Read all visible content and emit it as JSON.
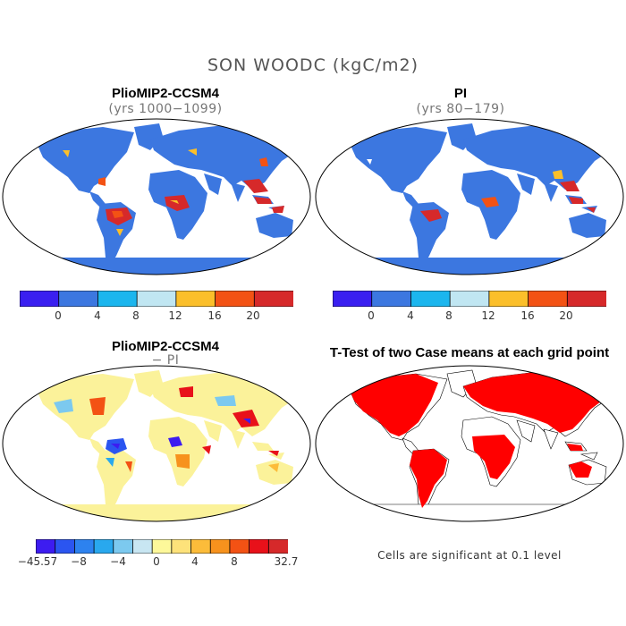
{
  "figure": {
    "title": "SON WOODC (kgC/m2)",
    "panels": [
      {
        "title": "PlioMIP2-CCSM4",
        "subtitle": "(yrs 1000−1099)"
      },
      {
        "title": "PI",
        "subtitle": "(yrs 80−179)"
      },
      {
        "title": "PlioMIP2-CCSM4",
        "subtitle": "− PI"
      },
      {
        "title": "T-Test of two Case means at each grid point",
        "subtitle": ""
      }
    ],
    "note": "Cells are significant at 0.1 level"
  },
  "colorbars": {
    "absolute": {
      "colors": [
        "#3a1ff0",
        "#3c77e0",
        "#1cb6ee",
        "#c0e6f2",
        "#fbbf2a",
        "#f35214",
        "#d6292a"
      ],
      "labels": [
        "0",
        "4",
        "8",
        "12",
        "16",
        "20"
      ]
    },
    "difference": {
      "colors": [
        "#3d1cf0",
        "#2b55f0",
        "#2d82ef",
        "#29a8ee",
        "#7cc9ef",
        "#c8e6f2",
        "#fdf89a",
        "#fde27a",
        "#fcbc3a",
        "#f7921d",
        "#f35214",
        "#e8111a",
        "#d6292a"
      ],
      "labels": [
        "−45.57",
        "−8",
        "−4",
        "0",
        "4",
        "8",
        "32.7"
      ]
    }
  },
  "colors": {
    "land_absolute": "#3c77e0",
    "land_difference": "#fbf29a",
    "significant": "#ff0000",
    "ocean": "#ffffff"
  }
}
